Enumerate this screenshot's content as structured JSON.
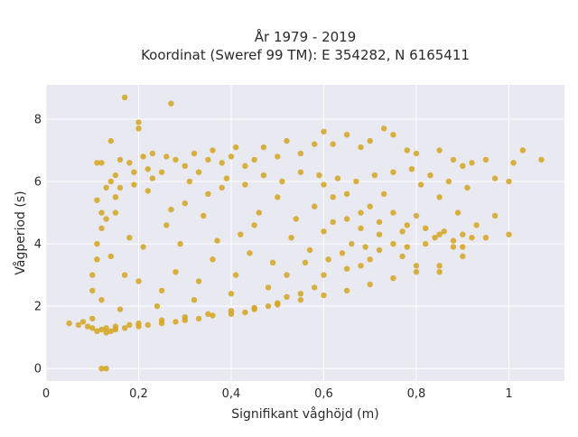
{
  "chart_data": {
    "type": "scatter",
    "title": "År 1979 - 2019",
    "subtitle": "Koordinat (Sweref 99 TM): E 354282, N 6165411",
    "xlabel": "Signifikant våghöjd (m)",
    "ylabel": "Vågperiod (s)",
    "xlim": [
      0,
      1.12
    ],
    "ylim": [
      -0.4,
      9.1
    ],
    "x_ticks": [
      0,
      0.2,
      0.4,
      0.6,
      0.8,
      1
    ],
    "x_tick_labels": [
      "0",
      "0,2",
      "0,4",
      "0,6",
      "0,8",
      "1"
    ],
    "y_ticks": [
      0,
      2,
      4,
      6,
      8
    ],
    "y_tick_labels": [
      "0",
      "2",
      "4",
      "6",
      "8"
    ],
    "grid": true,
    "marker_color": "#d4a420",
    "plot_background": "#e9e9f1",
    "series": [
      {
        "points": [
          [
            0.05,
            1.45
          ],
          [
            0.07,
            1.4
          ],
          [
            0.08,
            1.5
          ],
          [
            0.09,
            1.35
          ],
          [
            0.1,
            1.3
          ],
          [
            0.11,
            1.2
          ],
          [
            0.1,
            1.6
          ],
          [
            0.12,
            1.25
          ],
          [
            0.13,
            1.3
          ],
          [
            0.15,
            1.35
          ],
          [
            0.18,
            1.4
          ],
          [
            0.2,
            1.45
          ],
          [
            0.25,
            1.55
          ],
          [
            0.3,
            1.65
          ],
          [
            0.35,
            1.75
          ],
          [
            0.4,
            1.85
          ],
          [
            0.45,
            1.95
          ],
          [
            0.5,
            2.05
          ],
          [
            0.55,
            2.2
          ],
          [
            0.6,
            2.35
          ],
          [
            0.65,
            2.5
          ],
          [
            0.7,
            2.7
          ],
          [
            0.75,
            2.9
          ],
          [
            0.8,
            3.1
          ],
          [
            0.85,
            3.3
          ],
          [
            0.9,
            3.6
          ],
          [
            0.12,
            0.0
          ],
          [
            0.13,
            0.0
          ],
          [
            0.1,
            2.5
          ],
          [
            0.1,
            3.0
          ],
          [
            0.11,
            3.5
          ],
          [
            0.11,
            4.0
          ],
          [
            0.12,
            4.5
          ],
          [
            0.12,
            5.0
          ],
          [
            0.11,
            5.4
          ],
          [
            0.11,
            6.6
          ],
          [
            0.12,
            6.6
          ],
          [
            0.13,
            5.8
          ],
          [
            0.14,
            7.3
          ],
          [
            0.14,
            6.0
          ],
          [
            0.15,
            6.2
          ],
          [
            0.15,
            5.5
          ],
          [
            0.16,
            6.7
          ],
          [
            0.16,
            5.8
          ],
          [
            0.17,
            8.7
          ],
          [
            0.18,
            6.6
          ],
          [
            0.19,
            6.3
          ],
          [
            0.2,
            7.9
          ],
          [
            0.2,
            7.7
          ],
          [
            0.21,
            6.8
          ],
          [
            0.22,
            6.4
          ],
          [
            0.23,
            6.9
          ],
          [
            0.25,
            6.3
          ],
          [
            0.26,
            6.8
          ],
          [
            0.27,
            8.5
          ],
          [
            0.28,
            6.7
          ],
          [
            0.3,
            6.5
          ],
          [
            0.32,
            6.9
          ],
          [
            0.33,
            6.3
          ],
          [
            0.35,
            6.7
          ],
          [
            0.36,
            7.0
          ],
          [
            0.38,
            6.6
          ],
          [
            0.4,
            6.8
          ],
          [
            0.41,
            7.1
          ],
          [
            0.43,
            6.5
          ],
          [
            0.45,
            6.7
          ],
          [
            0.47,
            7.1
          ],
          [
            0.5,
            6.8
          ],
          [
            0.52,
            7.3
          ],
          [
            0.55,
            6.9
          ],
          [
            0.58,
            7.2
          ],
          [
            0.6,
            7.6
          ],
          [
            0.62,
            7.2
          ],
          [
            0.65,
            7.5
          ],
          [
            0.68,
            7.1
          ],
          [
            0.7,
            7.3
          ],
          [
            0.73,
            7.7
          ],
          [
            0.75,
            7.5
          ],
          [
            0.78,
            7.0
          ],
          [
            0.8,
            6.9
          ],
          [
            0.85,
            7.0
          ],
          [
            0.88,
            6.7
          ],
          [
            0.9,
            6.5
          ],
          [
            0.92,
            6.6
          ],
          [
            0.95,
            6.7
          ],
          [
            0.97,
            6.1
          ],
          [
            1.0,
            6.0
          ],
          [
            1.01,
            6.6
          ],
          [
            1.03,
            7.0
          ],
          [
            1.07,
            6.7
          ],
          [
            0.97,
            4.9
          ],
          [
            1.0,
            4.3
          ],
          [
            0.95,
            4.2
          ],
          [
            0.92,
            4.2
          ],
          [
            0.9,
            4.3
          ],
          [
            0.88,
            4.1
          ],
          [
            0.85,
            4.3
          ],
          [
            0.82,
            4.0
          ],
          [
            0.78,
            3.9
          ],
          [
            0.75,
            4.0
          ],
          [
            0.72,
            3.8
          ],
          [
            0.7,
            3.5
          ],
          [
            0.68,
            3.3
          ],
          [
            0.65,
            3.2
          ],
          [
            0.6,
            3.0
          ],
          [
            0.58,
            2.6
          ],
          [
            0.55,
            2.4
          ],
          [
            0.52,
            2.3
          ],
          [
            0.5,
            2.1
          ],
          [
            0.48,
            2.0
          ],
          [
            0.45,
            1.9
          ],
          [
            0.43,
            1.8
          ],
          [
            0.4,
            1.75
          ],
          [
            0.36,
            1.7
          ],
          [
            0.33,
            1.6
          ],
          [
            0.3,
            1.55
          ],
          [
            0.28,
            1.5
          ],
          [
            0.25,
            1.45
          ],
          [
            0.22,
            1.4
          ],
          [
            0.2,
            1.35
          ],
          [
            0.17,
            1.3
          ],
          [
            0.15,
            1.25
          ],
          [
            0.14,
            1.2
          ],
          [
            0.13,
            1.15
          ],
          [
            0.6,
            5.9
          ],
          [
            0.62,
            5.5
          ],
          [
            0.65,
            5.6
          ],
          [
            0.68,
            5.0
          ],
          [
            0.7,
            5.2
          ],
          [
            0.72,
            4.7
          ],
          [
            0.75,
            5.0
          ],
          [
            0.78,
            4.6
          ],
          [
            0.8,
            4.9
          ],
          [
            0.82,
            4.5
          ],
          [
            0.84,
            4.2
          ],
          [
            0.86,
            4.4
          ],
          [
            0.88,
            3.9
          ],
          [
            0.9,
            3.9
          ],
          [
            0.85,
            3.1
          ],
          [
            0.8,
            3.3
          ],
          [
            0.77,
            3.6
          ],
          [
            0.72,
            4.3
          ],
          [
            0.68,
            4.5
          ],
          [
            0.66,
            4.0
          ],
          [
            0.64,
            3.7
          ],
          [
            0.62,
            4.7
          ],
          [
            0.6,
            4.4
          ],
          [
            0.58,
            5.2
          ],
          [
            0.56,
            3.4
          ],
          [
            0.54,
            4.8
          ],
          [
            0.52,
            3.0
          ],
          [
            0.5,
            5.5
          ],
          [
            0.48,
            2.6
          ],
          [
            0.46,
            5.0
          ],
          [
            0.44,
            3.7
          ],
          [
            0.42,
            4.3
          ],
          [
            0.4,
            2.4
          ],
          [
            0.38,
            5.8
          ],
          [
            0.36,
            3.5
          ],
          [
            0.34,
            4.9
          ],
          [
            0.32,
            2.2
          ],
          [
            0.3,
            5.3
          ],
          [
            0.28,
            3.1
          ],
          [
            0.26,
            4.6
          ],
          [
            0.24,
            2.0
          ],
          [
            0.22,
            5.7
          ],
          [
            0.2,
            2.8
          ],
          [
            0.18,
            4.2
          ],
          [
            0.16,
            1.9
          ],
          [
            0.14,
            3.6
          ],
          [
            0.12,
            2.2
          ],
          [
            0.13,
            4.8
          ],
          [
            0.15,
            5.0
          ],
          [
            0.17,
            3.0
          ],
          [
            0.19,
            5.9
          ],
          [
            0.21,
            3.9
          ],
          [
            0.23,
            6.1
          ],
          [
            0.25,
            2.5
          ],
          [
            0.27,
            5.1
          ],
          [
            0.29,
            4.0
          ],
          [
            0.31,
            6.0
          ],
          [
            0.33,
            2.8
          ],
          [
            0.35,
            5.6
          ],
          [
            0.37,
            4.1
          ],
          [
            0.39,
            6.1
          ],
          [
            0.41,
            3.0
          ],
          [
            0.43,
            5.9
          ],
          [
            0.45,
            4.6
          ],
          [
            0.47,
            6.2
          ],
          [
            0.49,
            3.4
          ],
          [
            0.51,
            6.0
          ],
          [
            0.53,
            4.2
          ],
          [
            0.55,
            6.3
          ],
          [
            0.57,
            3.8
          ],
          [
            0.59,
            6.2
          ],
          [
            0.61,
            3.5
          ],
          [
            0.63,
            6.1
          ],
          [
            0.65,
            4.8
          ],
          [
            0.67,
            6.0
          ],
          [
            0.69,
            3.9
          ],
          [
            0.71,
            6.2
          ],
          [
            0.73,
            5.6
          ],
          [
            0.75,
            6.3
          ],
          [
            0.77,
            4.4
          ],
          [
            0.79,
            6.4
          ],
          [
            0.81,
            5.9
          ],
          [
            0.83,
            6.2
          ],
          [
            0.85,
            5.5
          ],
          [
            0.87,
            6.0
          ],
          [
            0.89,
            5.0
          ],
          [
            0.91,
            5.8
          ],
          [
            0.93,
            4.6
          ]
        ]
      }
    ]
  }
}
